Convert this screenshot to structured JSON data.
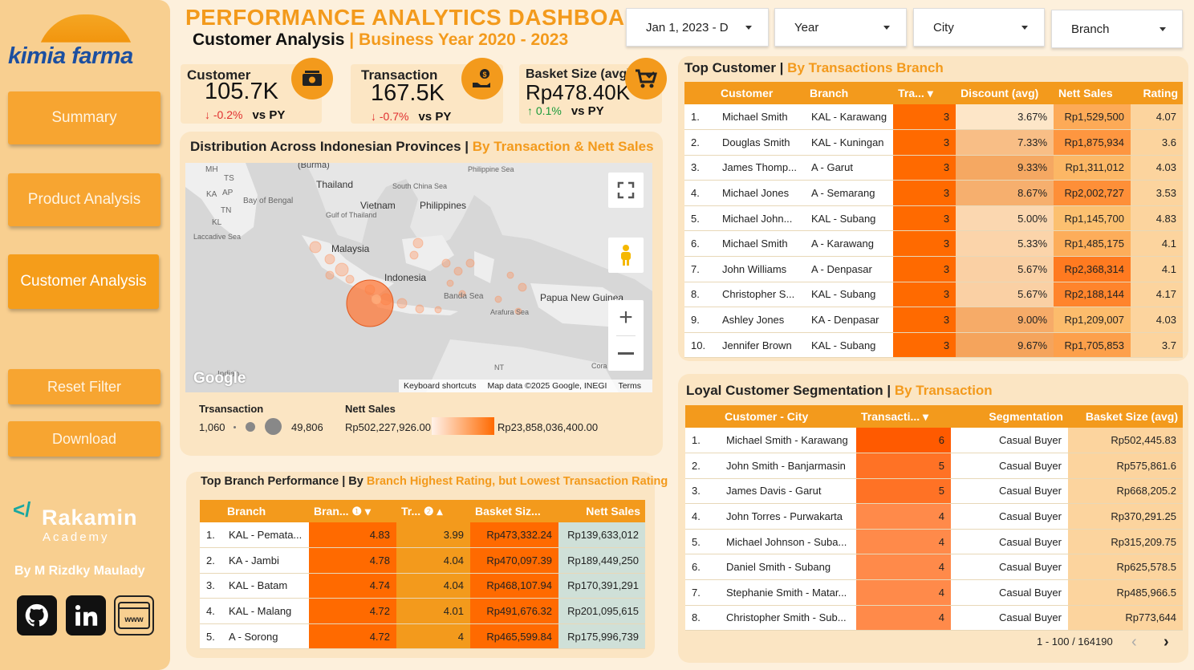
{
  "brand": {
    "logo_text": "kimia farma"
  },
  "sidebar": {
    "nav": [
      "Summary",
      "Product Analysis",
      "Customer Analysis",
      "Reset Filter",
      "Download"
    ],
    "rakamin": {
      "name": "Rakamin",
      "sub": "Academy"
    },
    "byline": "By M Rizdky Maulady",
    "social_icons": [
      "github-icon",
      "linkedin-icon",
      "website-icon"
    ]
  },
  "header": {
    "title": "PERFORMANCE ANALYTICS DASHBOARD",
    "subtitle_a": "Customer Analysis",
    "separator": "|",
    "subtitle_b": "Business Year 2020 - 2023"
  },
  "filters": [
    "Jan 1, 2023 - D",
    "Year",
    "City",
    "Branch"
  ],
  "kpis": [
    {
      "label": "Customer",
      "value": "105.7K",
      "change": "-0.2%",
      "vs": "vs PY",
      "icon": "money-icon"
    },
    {
      "label": "Transaction",
      "value": "167.5K",
      "change": "-0.7%",
      "vs": "vs PY",
      "icon": "hand-money-icon"
    },
    {
      "label": "Basket Size (avg)",
      "value": "Rp478.40K",
      "change": "0.1%",
      "vs": "vs PY",
      "icon": "cart-icon"
    }
  ],
  "map_card": {
    "title_a": "Distribution Across Indonesian Provinces | ",
    "title_b": "By Transaction & Nett Sales",
    "labels": [
      "MH",
      "TS",
      "KA",
      "AP",
      "TN",
      "KL",
      "(Burma)",
      "Thailand",
      "Bay of Bengal",
      "Vietnam",
      "South China Sea",
      "Philippines",
      "Philippine Sea",
      "Gulf of Thailand",
      "Laccadive Sea",
      "Malaysia",
      "Indonesia",
      "Banda Sea",
      "Papua New Guinea",
      "Arafura Sea",
      "NT",
      "Cora",
      "Indian"
    ],
    "google": "Google",
    "footer": [
      "Keyboard shortcuts",
      "Map data ©2025 Google, INEGI",
      "Terms"
    ],
    "legend": {
      "size_title": "Trsansaction",
      "size_min": "1,060",
      "size_max": "49,806",
      "color_title": "Nett Sales",
      "color_min": "Rp502,227,926.00",
      "color_max": "Rp23,858,036,400.00"
    }
  },
  "top_customer": {
    "title_a": "Top Customer | ",
    "title_b": "By Transactions Branch",
    "columns": [
      "Customer",
      "Branch",
      "Tra...",
      "Discount (avg)",
      "Nett Sales",
      "Rating"
    ],
    "rows": [
      [
        "1.",
        "Michael Smith",
        "KAL - Karawang",
        "3",
        "3.67%",
        "Rp1,529,500",
        "4.07"
      ],
      [
        "2.",
        "Douglas Smith",
        "KAL - Kuningan",
        "3",
        "7.33%",
        "Rp1,875,934",
        "3.6"
      ],
      [
        "3.",
        "James Thomp...",
        "A - Garut",
        "3",
        "9.33%",
        "Rp1,311,012",
        "4.03"
      ],
      [
        "4.",
        "Michael Jones",
        "A - Semarang",
        "3",
        "8.67%",
        "Rp2,002,727",
        "3.53"
      ],
      [
        "5.",
        "Michael John...",
        "KAL - Subang",
        "3",
        "5.00%",
        "Rp1,145,700",
        "4.83"
      ],
      [
        "6.",
        "Michael Smith",
        "A - Karawang",
        "3",
        "5.33%",
        "Rp1,485,175",
        "4.1"
      ],
      [
        "7.",
        "John Williams",
        "A - Denpasar",
        "3",
        "5.67%",
        "Rp2,368,314",
        "4.1"
      ],
      [
        "8.",
        "Christopher S...",
        "KAL - Subang",
        "3",
        "5.67%",
        "Rp2,188,144",
        "4.17"
      ],
      [
        "9.",
        "Ashley Jones",
        "KA - Denpasar",
        "3",
        "9.00%",
        "Rp1,209,007",
        "4.03"
      ],
      [
        "10.",
        "Jennifer Brown",
        "KAL - Subang",
        "3",
        "9.67%",
        "Rp1,705,853",
        "3.7"
      ]
    ]
  },
  "branch": {
    "title_a": "Top Branch Performance | By ",
    "title_b": "Branch Highest Rating, but Lowest Transaction Rating",
    "columns": [
      "Branch",
      "Bran...",
      "Tr...",
      "Basket Siz...",
      "Nett Sales"
    ],
    "rows": [
      [
        "1.",
        "KAL - Pemata...",
        "4.83",
        "3.99",
        "Rp473,332.24",
        "Rp139,633,012"
      ],
      [
        "2.",
        "KA - Jambi",
        "4.78",
        "4.04",
        "Rp470,097.39",
        "Rp189,449,250"
      ],
      [
        "3.",
        "KAL - Batam",
        "4.74",
        "4.04",
        "Rp468,107.94",
        "Rp170,391,291"
      ],
      [
        "4.",
        "KAL - Malang",
        "4.72",
        "4.01",
        "Rp491,676.32",
        "Rp201,095,615"
      ],
      [
        "5.",
        "A - Sorong",
        "4.72",
        "4",
        "Rp465,599.84",
        "Rp175,996,739"
      ]
    ]
  },
  "loyal": {
    "title_a": "Loyal Customer Segmentation | ",
    "title_b": "By Transaction",
    "columns": [
      "Customer - City",
      "Transacti...",
      "Segmentation",
      "Basket Size (avg)"
    ],
    "rows": [
      [
        "1.",
        "Michael Smith - Karawang",
        "6",
        "Casual Buyer",
        "Rp502,445.83"
      ],
      [
        "2.",
        "John Smith - Banjarmasin",
        "5",
        "Casual Buyer",
        "Rp575,861.6"
      ],
      [
        "3.",
        "James Davis - Garut",
        "5",
        "Casual Buyer",
        "Rp668,205.2"
      ],
      [
        "4.",
        "John Torres - Purwakarta",
        "4",
        "Casual Buyer",
        "Rp370,291.25"
      ],
      [
        "5.",
        "Michael Johnson - Suba...",
        "4",
        "Casual Buyer",
        "Rp315,209.75"
      ],
      [
        "6.",
        "Daniel Smith - Subang",
        "4",
        "Casual Buyer",
        "Rp625,578.5"
      ],
      [
        "7.",
        "Stephanie Smith - Matar...",
        "4",
        "Casual Buyer",
        "Rp485,966.5"
      ],
      [
        "8.",
        "Christopher Smith - Sub...",
        "4",
        "Casual Buyer",
        "Rp773,644"
      ]
    ],
    "pager": "1 - 100 / 164190"
  },
  "colors": {
    "accent": "#f39a1c",
    "dark_orange": "#ff6a00",
    "panel": "#fbe5c3",
    "sidebar": "#f8cf90"
  }
}
